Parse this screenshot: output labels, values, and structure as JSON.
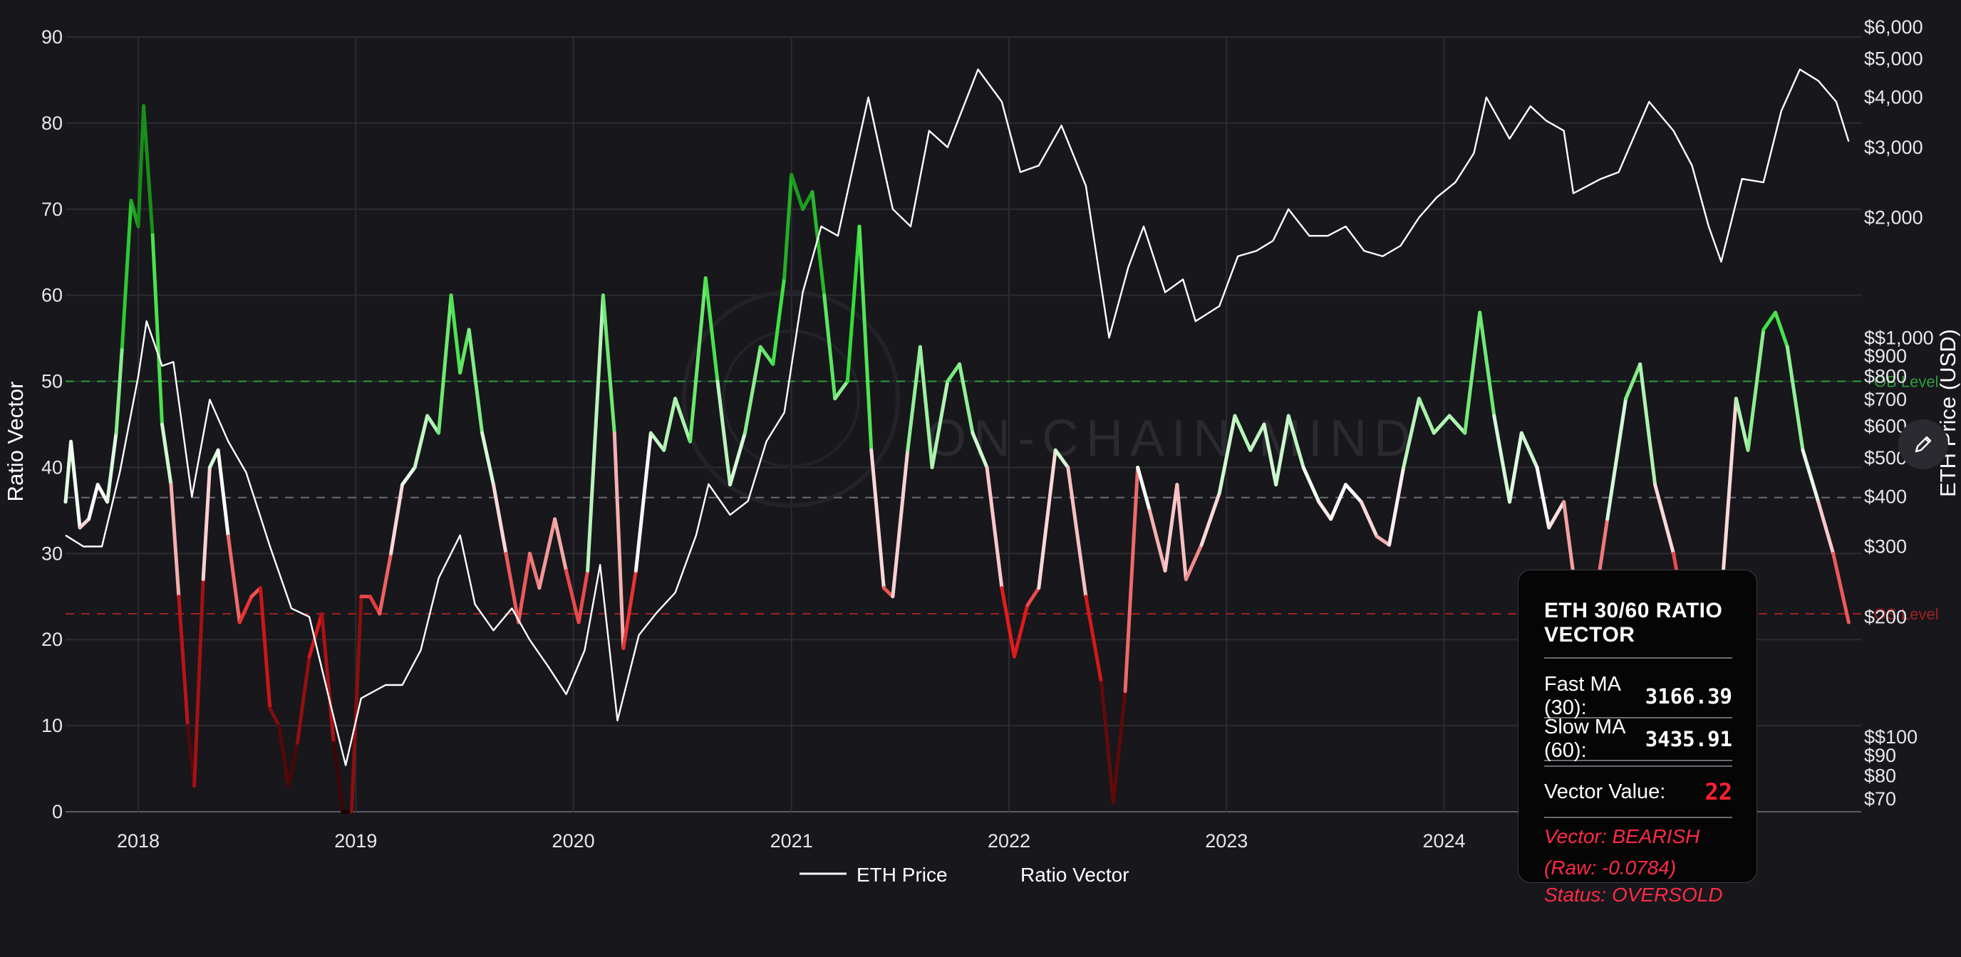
{
  "chart_data": {
    "type": "line",
    "watermark": "ON-CHAIN MIND",
    "left_axis": {
      "label": "Ratio Vector",
      "ticks": [
        "0",
        "10",
        "20",
        "30",
        "40",
        "50",
        "60",
        "70",
        "80",
        "90"
      ],
      "range": [
        0,
        90
      ]
    },
    "right_axis": {
      "label": "ETH Price (USD)",
      "scale": "log",
      "ticks": [
        "$6,000",
        "$5,000",
        "$4,000",
        "$3,000",
        "$2,000",
        "$$1,000",
        "$900",
        "$800",
        "$700",
        "$600",
        "$500",
        "$400",
        "$300",
        "$200",
        "$$100",
        "$90",
        "$80",
        "$70"
      ]
    },
    "x_axis": {
      "ticks": [
        "2018",
        "2019",
        "2020",
        "2021",
        "2022",
        "2023",
        "2024"
      ],
      "range": [
        "2017-09",
        "2025-12"
      ]
    },
    "reference_lines": [
      {
        "name": "OB Level",
        "label": "OB Level",
        "value": 50,
        "color": "#2e9e3a"
      },
      {
        "name": "midline",
        "label": "",
        "value": 36.5,
        "color": "#6c6c74"
      },
      {
        "name": "OS Level",
        "label": "OS Level",
        "value": 23,
        "color": "#a02020"
      }
    ],
    "legend": [
      {
        "name": "ETH Price",
        "color": "#ffffff"
      },
      {
        "name": "Ratio Vector",
        "color": "#ffffff"
      }
    ],
    "series": [
      {
        "name": "Ratio Vector",
        "axis": "left",
        "color_scale": {
          "low": "#1a0000",
          "mid_low": "#e51b1b",
          "mid": "#ffffff",
          "mid_high": "#36e03a",
          "high": "#0a6a0a"
        },
        "points": [
          [
            "2017-09-01",
            36
          ],
          [
            "2017-09-10",
            43
          ],
          [
            "2017-09-25",
            33
          ],
          [
            "2017-10-10",
            34
          ],
          [
            "2017-10-25",
            38
          ],
          [
            "2017-11-10",
            36
          ],
          [
            "2017-11-25",
            44
          ],
          [
            "2017-12-05",
            54
          ],
          [
            "2017-12-20",
            71
          ],
          [
            "2018-01-01",
            68
          ],
          [
            "2018-01-10",
            82
          ],
          [
            "2018-01-25",
            67
          ],
          [
            "2018-02-10",
            45
          ],
          [
            "2018-02-25",
            38
          ],
          [
            "2018-03-10",
            25
          ],
          [
            "2018-03-25",
            10
          ],
          [
            "2018-04-05",
            3
          ],
          [
            "2018-04-20",
            27
          ],
          [
            "2018-05-01",
            40
          ],
          [
            "2018-05-15",
            42
          ],
          [
            "2018-06-01",
            32
          ],
          [
            "2018-06-20",
            22
          ],
          [
            "2018-07-10",
            25
          ],
          [
            "2018-07-25",
            26
          ],
          [
            "2018-08-10",
            12
          ],
          [
            "2018-08-25",
            10
          ],
          [
            "2018-09-10",
            3
          ],
          [
            "2018-09-25",
            8
          ],
          [
            "2018-10-15",
            18
          ],
          [
            "2018-11-05",
            23
          ],
          [
            "2018-11-25",
            8
          ],
          [
            "2018-12-10",
            0
          ],
          [
            "2018-12-25",
            0
          ],
          [
            "2019-01-10",
            25
          ],
          [
            "2019-01-25",
            25
          ],
          [
            "2019-02-10",
            23
          ],
          [
            "2019-03-01",
            30
          ],
          [
            "2019-03-20",
            38
          ],
          [
            "2019-04-10",
            40
          ],
          [
            "2019-05-01",
            46
          ],
          [
            "2019-05-20",
            44
          ],
          [
            "2019-06-10",
            60
          ],
          [
            "2019-06-25",
            51
          ],
          [
            "2019-07-10",
            56
          ],
          [
            "2019-08-01",
            44
          ],
          [
            "2019-08-20",
            38
          ],
          [
            "2019-09-10",
            30
          ],
          [
            "2019-10-01",
            22
          ],
          [
            "2019-10-20",
            30
          ],
          [
            "2019-11-05",
            26
          ],
          [
            "2019-12-01",
            34
          ],
          [
            "2019-12-20",
            28
          ],
          [
            "2020-01-10",
            22
          ],
          [
            "2020-01-25",
            28
          ],
          [
            "2020-02-20",
            60
          ],
          [
            "2020-03-10",
            44
          ],
          [
            "2020-03-25",
            19
          ],
          [
            "2020-04-15",
            28
          ],
          [
            "2020-05-10",
            44
          ],
          [
            "2020-06-01",
            42
          ],
          [
            "2020-06-20",
            48
          ],
          [
            "2020-07-15",
            43
          ],
          [
            "2020-08-10",
            62
          ],
          [
            "2020-08-30",
            50
          ],
          [
            "2020-09-20",
            38
          ],
          [
            "2020-10-15",
            44
          ],
          [
            "2020-11-10",
            54
          ],
          [
            "2020-12-01",
            52
          ],
          [
            "2020-12-20",
            62
          ],
          [
            "2021-01-01",
            74
          ],
          [
            "2021-01-20",
            70
          ],
          [
            "2021-02-05",
            72
          ],
          [
            "2021-02-25",
            60
          ],
          [
            "2021-03-15",
            48
          ],
          [
            "2021-04-05",
            50
          ],
          [
            "2021-04-25",
            68
          ],
          [
            "2021-05-15",
            42
          ],
          [
            "2021-06-05",
            26
          ],
          [
            "2021-06-20",
            25
          ],
          [
            "2021-07-15",
            42
          ],
          [
            "2021-08-05",
            54
          ],
          [
            "2021-08-25",
            40
          ],
          [
            "2021-09-20",
            50
          ],
          [
            "2021-10-10",
            52
          ],
          [
            "2021-11-01",
            44
          ],
          [
            "2021-11-25",
            40
          ],
          [
            "2021-12-20",
            26
          ],
          [
            "2022-01-10",
            18
          ],
          [
            "2022-02-01",
            24
          ],
          [
            "2022-02-20",
            26
          ],
          [
            "2022-03-20",
            42
          ],
          [
            "2022-04-10",
            40
          ],
          [
            "2022-05-10",
            25
          ],
          [
            "2022-06-05",
            15
          ],
          [
            "2022-06-25",
            1
          ],
          [
            "2022-07-15",
            14
          ],
          [
            "2022-08-05",
            40
          ],
          [
            "2022-08-25",
            35
          ],
          [
            "2022-09-20",
            28
          ],
          [
            "2022-10-10",
            38
          ],
          [
            "2022-10-25",
            27
          ],
          [
            "2022-11-20",
            31
          ],
          [
            "2022-12-20",
            37
          ],
          [
            "2023-01-15",
            46
          ],
          [
            "2023-02-10",
            42
          ],
          [
            "2023-03-05",
            45
          ],
          [
            "2023-03-25",
            38
          ],
          [
            "2023-04-15",
            46
          ],
          [
            "2023-05-10",
            40
          ],
          [
            "2023-06-05",
            36
          ],
          [
            "2023-06-25",
            34
          ],
          [
            "2023-07-20",
            38
          ],
          [
            "2023-08-15",
            36
          ],
          [
            "2023-09-10",
            32
          ],
          [
            "2023-10-01",
            31
          ],
          [
            "2023-10-25",
            40
          ],
          [
            "2023-11-20",
            48
          ],
          [
            "2023-12-15",
            44
          ],
          [
            "2024-01-10",
            46
          ],
          [
            "2024-02-05",
            44
          ],
          [
            "2024-03-01",
            58
          ],
          [
            "2024-03-25",
            46
          ],
          [
            "2024-04-20",
            36
          ],
          [
            "2024-05-10",
            44
          ],
          [
            "2024-06-05",
            40
          ],
          [
            "2024-06-25",
            33
          ],
          [
            "2024-07-20",
            36
          ],
          [
            "2024-08-10",
            25
          ],
          [
            "2024-09-05",
            22
          ],
          [
            "2024-10-01",
            34
          ],
          [
            "2024-11-01",
            48
          ],
          [
            "2024-11-25",
            52
          ],
          [
            "2024-12-20",
            38
          ],
          [
            "2025-01-20",
            30
          ],
          [
            "2025-02-15",
            20
          ],
          [
            "2025-03-10",
            16
          ],
          [
            "2025-04-05",
            20
          ],
          [
            "2025-05-05",
            48
          ],
          [
            "2025-05-25",
            42
          ],
          [
            "2025-06-20",
            56
          ],
          [
            "2025-07-10",
            58
          ],
          [
            "2025-07-30",
            54
          ],
          [
            "2025-08-25",
            42
          ],
          [
            "2025-09-20",
            36
          ],
          [
            "2025-10-15",
            30
          ],
          [
            "2025-11-10",
            22
          ]
        ]
      },
      {
        "name": "ETH Price",
        "axis": "right",
        "color": "#ffffff",
        "points": [
          [
            "2017-09-01",
            320
          ],
          [
            "2017-10-01",
            300
          ],
          [
            "2017-11-01",
            300
          ],
          [
            "2017-12-01",
            460
          ],
          [
            "2018-01-01",
            800
          ],
          [
            "2018-01-15",
            1100
          ],
          [
            "2018-02-10",
            850
          ],
          [
            "2018-03-01",
            870
          ],
          [
            "2018-04-01",
            400
          ],
          [
            "2018-05-01",
            700
          ],
          [
            "2018-06-01",
            550
          ],
          [
            "2018-07-01",
            460
          ],
          [
            "2018-08-10",
            300
          ],
          [
            "2018-09-15",
            210
          ],
          [
            "2018-10-15",
            200
          ],
          [
            "2018-11-20",
            120
          ],
          [
            "2018-12-15",
            85
          ],
          [
            "2019-01-10",
            125
          ],
          [
            "2019-02-20",
            135
          ],
          [
            "2019-03-20",
            135
          ],
          [
            "2019-04-20",
            165
          ],
          [
            "2019-05-20",
            250
          ],
          [
            "2019-06-25",
            320
          ],
          [
            "2019-07-20",
            215
          ],
          [
            "2019-08-20",
            185
          ],
          [
            "2019-09-20",
            210
          ],
          [
            "2019-10-20",
            175
          ],
          [
            "2019-11-20",
            150
          ],
          [
            "2019-12-20",
            128
          ],
          [
            "2020-01-20",
            165
          ],
          [
            "2020-02-15",
            270
          ],
          [
            "2020-03-15",
            110
          ],
          [
            "2020-04-20",
            180
          ],
          [
            "2020-05-20",
            205
          ],
          [
            "2020-06-20",
            230
          ],
          [
            "2020-07-25",
            320
          ],
          [
            "2020-08-15",
            430
          ],
          [
            "2020-09-20",
            360
          ],
          [
            "2020-10-20",
            390
          ],
          [
            "2020-11-20",
            550
          ],
          [
            "2020-12-20",
            650
          ],
          [
            "2021-01-20",
            1300
          ],
          [
            "2021-02-20",
            1900
          ],
          [
            "2021-03-20",
            1800
          ],
          [
            "2021-05-10",
            4000
          ],
          [
            "2021-06-20",
            2100
          ],
          [
            "2021-07-20",
            1900
          ],
          [
            "2021-08-20",
            3300
          ],
          [
            "2021-09-20",
            3000
          ],
          [
            "2021-11-10",
            4700
          ],
          [
            "2021-12-20",
            3900
          ],
          [
            "2022-01-20",
            2600
          ],
          [
            "2022-02-20",
            2700
          ],
          [
            "2022-03-30",
            3400
          ],
          [
            "2022-05-10",
            2400
          ],
          [
            "2022-06-18",
            1000
          ],
          [
            "2022-07-20",
            1500
          ],
          [
            "2022-08-15",
            1900
          ],
          [
            "2022-09-20",
            1300
          ],
          [
            "2022-10-20",
            1400
          ],
          [
            "2022-11-10",
            1100
          ],
          [
            "2022-12-20",
            1200
          ],
          [
            "2023-01-20",
            1600
          ],
          [
            "2023-02-20",
            1650
          ],
          [
            "2023-03-20",
            1750
          ],
          [
            "2023-04-15",
            2100
          ],
          [
            "2023-05-20",
            1800
          ],
          [
            "2023-06-20",
            1800
          ],
          [
            "2023-07-20",
            1900
          ],
          [
            "2023-08-20",
            1650
          ],
          [
            "2023-09-20",
            1600
          ],
          [
            "2023-10-20",
            1700
          ],
          [
            "2023-11-20",
            2000
          ],
          [
            "2023-12-20",
            2250
          ],
          [
            "2024-01-20",
            2450
          ],
          [
            "2024-02-20",
            2900
          ],
          [
            "2024-03-12",
            4000
          ],
          [
            "2024-04-20",
            3150
          ],
          [
            "2024-05-25",
            3800
          ],
          [
            "2024-06-20",
            3500
          ],
          [
            "2024-07-20",
            3300
          ],
          [
            "2024-08-05",
            2300
          ],
          [
            "2024-09-20",
            2500
          ],
          [
            "2024-10-20",
            2600
          ],
          [
            "2024-12-10",
            3900
          ],
          [
            "2025-01-20",
            3300
          ],
          [
            "2025-02-20",
            2700
          ],
          [
            "2025-03-20",
            1900
          ],
          [
            "2025-04-10",
            1550
          ],
          [
            "2025-05-15",
            2500
          ],
          [
            "2025-06-20",
            2450
          ],
          [
            "2025-07-20",
            3700
          ],
          [
            "2025-08-20",
            4700
          ],
          [
            "2025-09-20",
            4400
          ],
          [
            "2025-10-20",
            3900
          ],
          [
            "2025-11-10",
            3100
          ]
        ]
      }
    ]
  },
  "panel": {
    "title": "ETH 30/60 RATIO VECTOR",
    "fast_label": "Fast MA (30):",
    "fast_value": "3166.39",
    "slow_label": "Slow MA (60):",
    "slow_value": "3435.91",
    "vector_label": "Vector Value:",
    "vector_value": "22",
    "vector_status": "Vector: BEARISH (Raw: -0.0784)",
    "status": "Status: OVERSOLD",
    "vector_color": "#ff2030",
    "status_color": "#ff2a45"
  },
  "edit_button": {
    "icon": "pencil-icon"
  }
}
